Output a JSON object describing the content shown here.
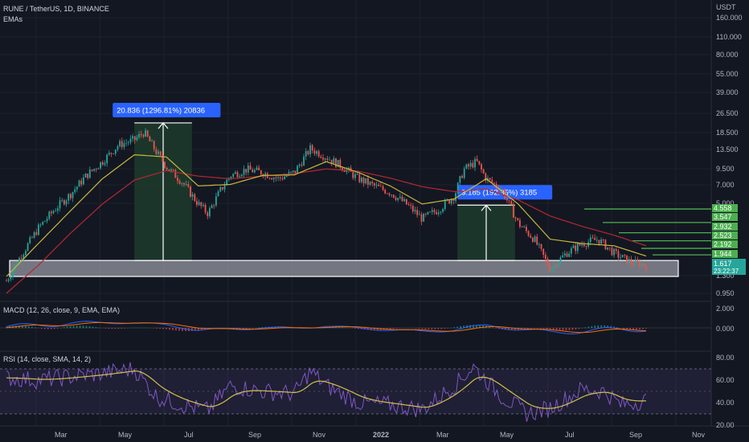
{
  "header": {
    "symbol": "RUNE / TetherUS, 1D, BINANCE",
    "indicator": "EMAs",
    "currency": "USDT"
  },
  "price_axis_labels": [
    "160.000",
    "110.000",
    "80.000",
    "55.000",
    "39.000",
    "26.500",
    "18.500",
    "13.500",
    "9.500",
    "7.000",
    "5.000",
    "1.300",
    "0.950"
  ],
  "right_badges": {
    "levels": [
      "4.558",
      "3.547",
      "2.932",
      "2.523",
      "2.192",
      "1.944"
    ],
    "last_price": "1.617",
    "countdown": "23:22:37"
  },
  "measure_labels": [
    {
      "text": "20.836 (1296.81%) 20836"
    },
    {
      "text": "3.185 (192.35%) 3185"
    }
  ],
  "macd": {
    "title": "MACD (12, 26, close, 9, EMA, EMA)",
    "axis_labels": [
      "2.000",
      "0.000"
    ]
  },
  "rsi": {
    "title": "RSI (14, close, SMA, 14, 2)",
    "axis_labels": [
      "80.00",
      "60.00",
      "40.00",
      "20.00"
    ]
  },
  "x_axis_labels": [
    "Mar",
    "May",
    "Jul",
    "Sep",
    "Nov",
    "2022",
    "Mar",
    "May",
    "Jul",
    "Sep",
    "Nov"
  ],
  "colors": {
    "background": "#131722",
    "up": "#26a69a",
    "down": "#ef5350",
    "ema_fast": "#c9b73d",
    "ema_slow": "#b22833",
    "measure_fill": "#1f3b2b",
    "badge_blue": "#2962ff",
    "level_green": "#4caf50",
    "macd_line": "#2962ff",
    "signal_line": "#ff6d00",
    "rsi_line": "#7e57c2",
    "rsi_ma": "#d4c04a"
  },
  "chart_data": {
    "type": "candlestick",
    "title": "RUNE / TetherUS, 1D, BINANCE",
    "y_scale": "log",
    "ylim": [
      0.9,
      180
    ],
    "x_months": [
      "Mar",
      "May",
      "Jul",
      "Sep",
      "Nov",
      "2022",
      "Mar",
      "May",
      "Jul",
      "Sep",
      "Nov"
    ],
    "close_path_months": [
      {
        "m": 0.0,
        "v": 1.2
      },
      {
        "m": 0.5,
        "v": 2.0
      },
      {
        "m": 1.0,
        "v": 3.2
      },
      {
        "m": 1.5,
        "v": 4.5
      },
      {
        "m": 2.0,
        "v": 6.0
      },
      {
        "m": 2.5,
        "v": 8.5
      },
      {
        "m": 3.0,
        "v": 11.0
      },
      {
        "m": 3.5,
        "v": 15.0
      },
      {
        "m": 4.0,
        "v": 16.5
      },
      {
        "m": 4.3,
        "v": 19.0
      },
      {
        "m": 4.7,
        "v": 13.0
      },
      {
        "m": 5.0,
        "v": 10.0
      },
      {
        "m": 5.5,
        "v": 7.5
      },
      {
        "m": 6.0,
        "v": 5.0
      },
      {
        "m": 6.3,
        "v": 4.2
      },
      {
        "m": 6.7,
        "v": 6.5
      },
      {
        "m": 7.0,
        "v": 8.5
      },
      {
        "m": 7.5,
        "v": 9.5
      },
      {
        "m": 8.0,
        "v": 9.0
      },
      {
        "m": 8.5,
        "v": 8.0
      },
      {
        "m": 9.0,
        "v": 9.0
      },
      {
        "m": 9.5,
        "v": 14.0
      },
      {
        "m": 10.0,
        "v": 12.0
      },
      {
        "m": 10.5,
        "v": 10.0
      },
      {
        "m": 11.0,
        "v": 8.0
      },
      {
        "m": 11.5,
        "v": 7.0
      },
      {
        "m": 12.0,
        "v": 6.2
      },
      {
        "m": 12.5,
        "v": 5.0
      },
      {
        "m": 13.0,
        "v": 3.8
      },
      {
        "m": 13.5,
        "v": 4.5
      },
      {
        "m": 14.0,
        "v": 5.8
      },
      {
        "m": 14.3,
        "v": 9.5
      },
      {
        "m": 14.7,
        "v": 11.0
      },
      {
        "m": 15.0,
        "v": 8.0
      },
      {
        "m": 15.5,
        "v": 6.5
      },
      {
        "m": 16.0,
        "v": 3.5
      },
      {
        "m": 16.5,
        "v": 2.6
      },
      {
        "m": 17.0,
        "v": 1.5
      },
      {
        "m": 17.5,
        "v": 2.0
      },
      {
        "m": 18.0,
        "v": 2.4
      },
      {
        "m": 18.5,
        "v": 2.6
      },
      {
        "m": 19.0,
        "v": 2.0
      },
      {
        "m": 19.5,
        "v": 1.7
      },
      {
        "m": 20.0,
        "v": 1.6
      }
    ],
    "ema_fast_path_months": [
      {
        "m": 0.0,
        "v": 1.3
      },
      {
        "m": 1.0,
        "v": 2.4
      },
      {
        "m": 2.0,
        "v": 4.4
      },
      {
        "m": 3.0,
        "v": 8.0
      },
      {
        "m": 4.0,
        "v": 12.5
      },
      {
        "m": 5.0,
        "v": 12.0
      },
      {
        "m": 6.0,
        "v": 7.0
      },
      {
        "m": 7.0,
        "v": 7.2
      },
      {
        "m": 8.0,
        "v": 8.5
      },
      {
        "m": 9.0,
        "v": 8.6
      },
      {
        "m": 10.0,
        "v": 11.0
      },
      {
        "m": 11.0,
        "v": 9.0
      },
      {
        "m": 12.0,
        "v": 7.0
      },
      {
        "m": 13.0,
        "v": 5.0
      },
      {
        "m": 14.0,
        "v": 5.5
      },
      {
        "m": 15.0,
        "v": 8.0
      },
      {
        "m": 16.0,
        "v": 5.0
      },
      {
        "m": 17.0,
        "v": 2.6
      },
      {
        "m": 18.0,
        "v": 2.4
      },
      {
        "m": 19.0,
        "v": 2.3
      },
      {
        "m": 20.0,
        "v": 1.9
      }
    ],
    "ema_slow_path_months": [
      {
        "m": 0.0,
        "v": 0.95
      },
      {
        "m": 1.0,
        "v": 1.6
      },
      {
        "m": 2.0,
        "v": 2.9
      },
      {
        "m": 3.0,
        "v": 5.0
      },
      {
        "m": 4.0,
        "v": 7.8
      },
      {
        "m": 5.0,
        "v": 9.3
      },
      {
        "m": 6.0,
        "v": 8.4
      },
      {
        "m": 7.0,
        "v": 8.0
      },
      {
        "m": 8.0,
        "v": 8.4
      },
      {
        "m": 9.0,
        "v": 8.8
      },
      {
        "m": 10.0,
        "v": 9.6
      },
      {
        "m": 11.0,
        "v": 9.2
      },
      {
        "m": 12.0,
        "v": 8.1
      },
      {
        "m": 13.0,
        "v": 6.9
      },
      {
        "m": 14.0,
        "v": 6.3
      },
      {
        "m": 15.0,
        "v": 6.6
      },
      {
        "m": 16.0,
        "v": 5.4
      },
      {
        "m": 17.0,
        "v": 4.0
      },
      {
        "m": 18.0,
        "v": 3.3
      },
      {
        "m": 19.0,
        "v": 2.8
      },
      {
        "m": 20.0,
        "v": 2.3
      }
    ],
    "support_zone": {
      "low": 1.3,
      "high": 1.75
    },
    "measure_boxes": [
      {
        "label": "20.836 (1296.81%) 20836",
        "from_month": 4.0,
        "to_month": 5.8,
        "low": 1.75,
        "high": 22.6
      },
      {
        "label": "3.185 (192.35%) 3185",
        "from_month": 14.1,
        "to_month": 15.9,
        "low": 1.75,
        "high": 4.9
      }
    ],
    "target_levels": [
      4.558,
      3.547,
      2.932,
      2.523,
      2.192,
      1.944
    ],
    "last_price": 1.617,
    "macd_ylim": [
      -1.5,
      3.0
    ],
    "rsi_ylim": [
      20,
      85
    ],
    "rsi_band": [
      30,
      70
    ],
    "rsi_path_months": [
      {
        "m": 0.0,
        "v": 62
      },
      {
        "m": 1.0,
        "v": 60
      },
      {
        "m": 2.0,
        "v": 63
      },
      {
        "m": 3.0,
        "v": 66
      },
      {
        "m": 4.0,
        "v": 70
      },
      {
        "m": 4.7,
        "v": 45
      },
      {
        "m": 5.5,
        "v": 38
      },
      {
        "m": 6.3,
        "v": 33
      },
      {
        "m": 7.0,
        "v": 55
      },
      {
        "m": 8.0,
        "v": 50
      },
      {
        "m": 9.0,
        "v": 48
      },
      {
        "m": 9.5,
        "v": 68
      },
      {
        "m": 10.0,
        "v": 55
      },
      {
        "m": 11.0,
        "v": 40
      },
      {
        "m": 12.0,
        "v": 38
      },
      {
        "m": 13.0,
        "v": 34
      },
      {
        "m": 14.0,
        "v": 55
      },
      {
        "m": 14.6,
        "v": 72
      },
      {
        "m": 15.5,
        "v": 45
      },
      {
        "m": 16.3,
        "v": 30
      },
      {
        "m": 17.0,
        "v": 35
      },
      {
        "m": 18.0,
        "v": 52
      },
      {
        "m": 18.7,
        "v": 50
      },
      {
        "m": 19.2,
        "v": 38
      },
      {
        "m": 20.0,
        "v": 42
      }
    ]
  }
}
